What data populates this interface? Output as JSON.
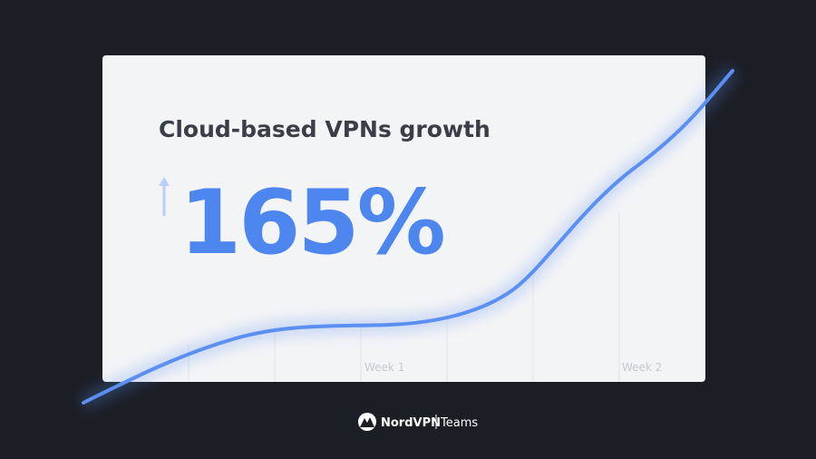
{
  "headline": {
    "title": "Cloud-based VPNs growth",
    "stat": "165%"
  },
  "chart": {
    "labels": [
      "Week 1",
      "Week 2"
    ]
  },
  "footer": {
    "brand": "NordVPN",
    "product": "Teams"
  }
}
